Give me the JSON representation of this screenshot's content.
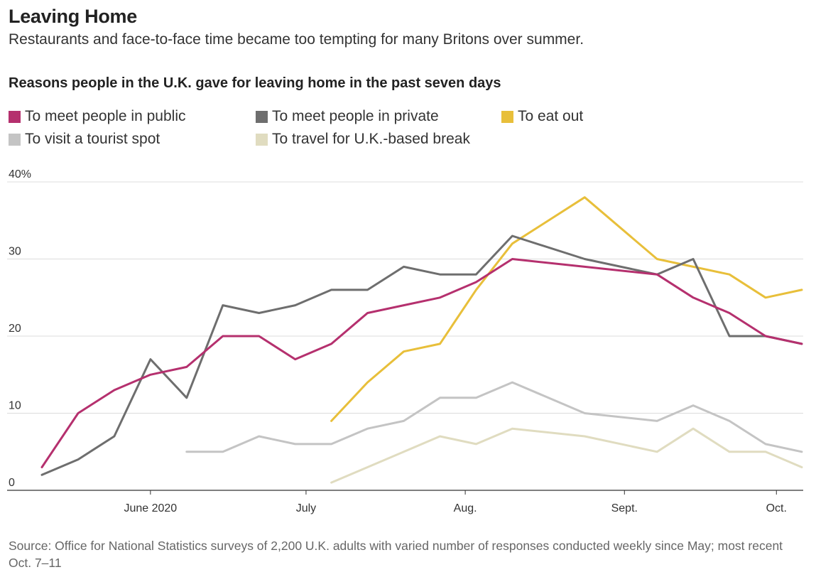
{
  "header": {
    "title": "Leaving Home",
    "subtitle": "Restaurants and face-to-face time became too tempting for many Britons over summer.",
    "chart_heading": "Reasons people in the U.K. gave for leaving home in the past seven days"
  },
  "source": "Source: Office for National Statistics surveys of 2,200 U.K. adults with varied number of responses conducted weekly since May; most recent Oct. 7–11",
  "chart_data": {
    "type": "line",
    "title": "Reasons people in the U.K. gave for leaving home in the past seven days",
    "xlabel": "",
    "ylabel": "",
    "ylim": [
      0,
      40
    ],
    "y_ticks": [
      0,
      10,
      20,
      30,
      40
    ],
    "y_tick_labels": [
      "0",
      "10",
      "20",
      "30",
      "40%"
    ],
    "x_ticks": [
      {
        "label": "June 2020",
        "week": 3
      },
      {
        "label": "July",
        "week": 7.3
      },
      {
        "label": "Aug.",
        "week": 11.7
      },
      {
        "label": "Sept.",
        "week": 16.1
      },
      {
        "label": "Oct.",
        "week": 20.3
      }
    ],
    "grid": true,
    "legend_position": "top-left",
    "series": [
      {
        "name": "To meet people in public",
        "color": "#b5306e",
        "x": [
          0,
          1,
          2,
          3,
          4,
          5,
          6,
          7,
          8,
          9,
          10,
          11,
          12,
          13,
          15,
          17,
          18,
          19,
          20,
          21
        ],
        "values": [
          3,
          10,
          13,
          15,
          16,
          20,
          20,
          17,
          19,
          23,
          24,
          25,
          27,
          30,
          29,
          28,
          25,
          23,
          20,
          19
        ]
      },
      {
        "name": "To meet people in private",
        "color": "#6e6e6e",
        "x": [
          0,
          1,
          2,
          3,
          4,
          5,
          6,
          7,
          8,
          9,
          10,
          11,
          12,
          13,
          15,
          17,
          18,
          19,
          20,
          21
        ],
        "values": [
          2,
          4,
          7,
          17,
          12,
          24,
          23,
          24,
          26,
          26,
          29,
          28,
          28,
          33,
          30,
          28,
          30,
          20,
          20,
          19
        ]
      },
      {
        "name": "To eat out",
        "color": "#e8bf3a",
        "x": [
          8,
          9,
          10,
          11,
          12,
          13,
          15,
          17,
          18,
          19,
          20,
          21
        ],
        "values": [
          9,
          14,
          18,
          19,
          26,
          32,
          38,
          30,
          29,
          28,
          25,
          26
        ]
      },
      {
        "name": "To visit a tourist spot",
        "color": "#c4c4c4",
        "x": [
          4,
          5,
          6,
          7,
          8,
          9,
          10,
          11,
          12,
          13,
          15,
          17,
          18,
          19,
          20,
          21
        ],
        "values": [
          5,
          5,
          7,
          6,
          6,
          8,
          9,
          12,
          12,
          14,
          10,
          9,
          11,
          9,
          6,
          5
        ]
      },
      {
        "name": "To travel for U.K.-based break",
        "color": "#e0dcc0",
        "x": [
          8,
          9,
          10,
          11,
          12,
          13,
          15,
          17,
          18,
          19,
          20,
          21
        ],
        "values": [
          1,
          3,
          5,
          7,
          6,
          8,
          7,
          5,
          8,
          5,
          5,
          3
        ]
      }
    ]
  }
}
